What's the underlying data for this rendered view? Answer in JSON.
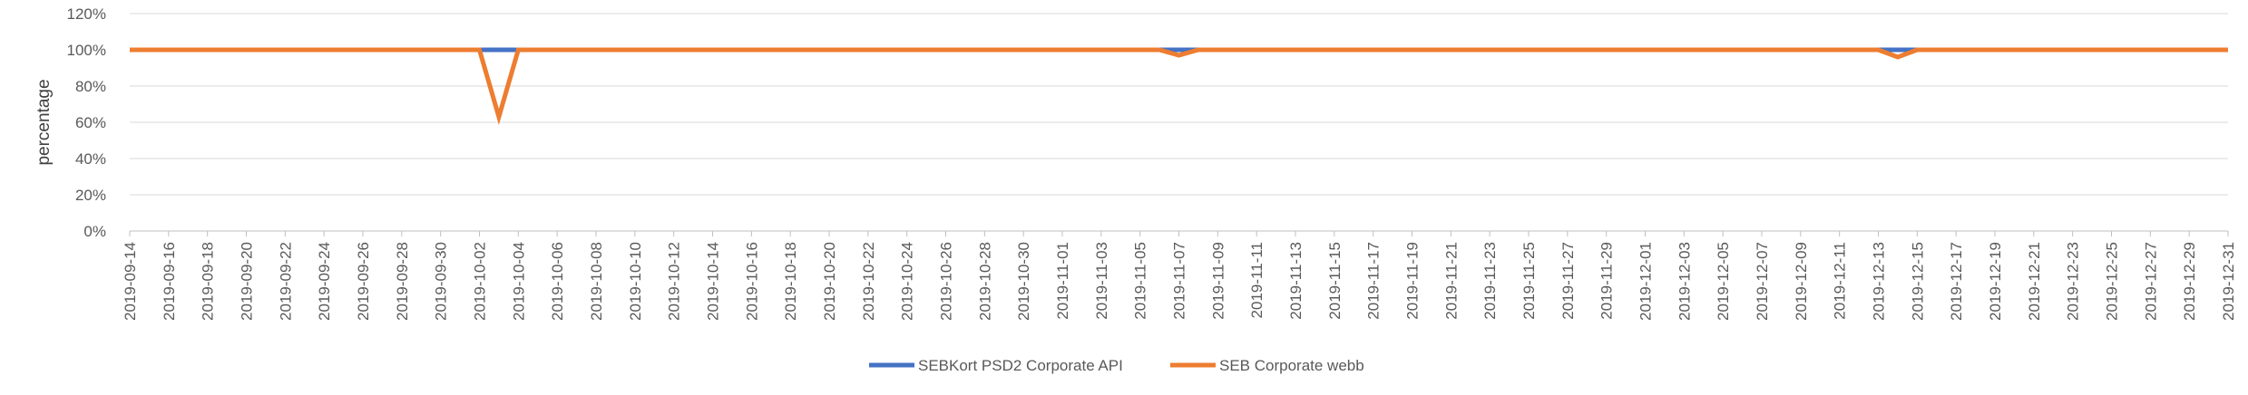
{
  "chart_data": {
    "type": "line",
    "ylabel": "percentage",
    "ylim": [
      0,
      120
    ],
    "yticks": [
      0,
      20,
      40,
      60,
      80,
      100,
      120
    ],
    "yticklabels": [
      "0%",
      "20%",
      "40%",
      "60%",
      "80%",
      "100%",
      "120%"
    ],
    "x_start": "2019-09-14",
    "x_end": "2019-12-31",
    "xticklabels": [
      "2019-09-14",
      "2019-09-16",
      "2019-09-18",
      "2019-09-20",
      "2019-09-22",
      "2019-09-24",
      "2019-09-26",
      "2019-09-28",
      "2019-09-30",
      "2019-10-02",
      "2019-10-04",
      "2019-10-06",
      "2019-10-08",
      "2019-10-10",
      "2019-10-12",
      "2019-10-14",
      "2019-10-16",
      "2019-10-18",
      "2019-10-20",
      "2019-10-22",
      "2019-10-24",
      "2019-10-26",
      "2019-10-28",
      "2019-10-30",
      "2019-11-01",
      "2019-11-03",
      "2019-11-05",
      "2019-11-07",
      "2019-11-09",
      "2019-11-11",
      "2019-11-13",
      "2019-11-15",
      "2019-11-17",
      "2019-11-19",
      "2019-11-21",
      "2019-11-23",
      "2019-11-25",
      "2019-11-27",
      "2019-11-29",
      "2019-12-01",
      "2019-12-03",
      "2019-12-05",
      "2019-12-07",
      "2019-12-09",
      "2019-12-11",
      "2019-12-13",
      "2019-12-15",
      "2019-12-17",
      "2019-12-19",
      "2019-12-21",
      "2019-12-23",
      "2019-12-25",
      "2019-12-27",
      "2019-12-29",
      "2019-12-31"
    ],
    "grid": true,
    "legend_position": "bottom",
    "series": [
      {
        "name": "SEBKort PSD2 Corporate API",
        "color": "#4472C4",
        "points": [
          {
            "x": "2019-09-14",
            "y": 100
          },
          {
            "x": "2019-12-31",
            "y": 100
          }
        ]
      },
      {
        "name": "SEB Corporate webb",
        "color": "#ED7D31",
        "points": [
          {
            "x": "2019-09-14",
            "y": 100
          },
          {
            "x": "2019-10-02",
            "y": 100
          },
          {
            "x": "2019-10-03",
            "y": 63
          },
          {
            "x": "2019-10-04",
            "y": 100
          },
          {
            "x": "2019-11-06",
            "y": 100
          },
          {
            "x": "2019-11-07",
            "y": 97
          },
          {
            "x": "2019-11-08",
            "y": 100
          },
          {
            "x": "2019-12-13",
            "y": 100
          },
          {
            "x": "2019-12-14",
            "y": 96
          },
          {
            "x": "2019-12-15",
            "y": 100
          },
          {
            "x": "2019-12-31",
            "y": 100
          }
        ]
      }
    ]
  }
}
